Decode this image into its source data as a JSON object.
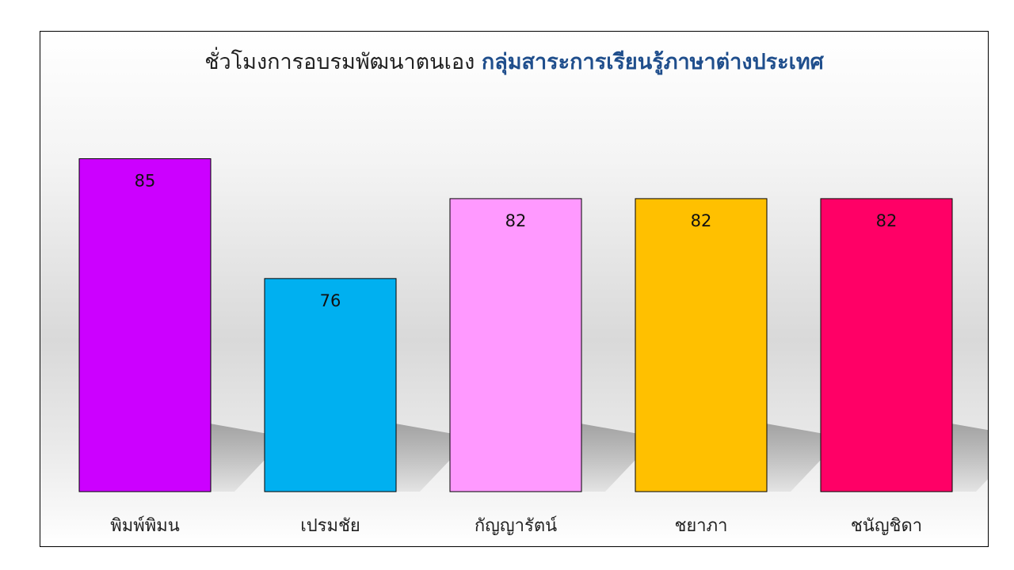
{
  "chart_data": {
    "type": "bar",
    "title_prefix": "ชั่วโมงการอบรมพัฒนาตนเอง",
    "title_highlight": "กลุ่มสาระการเรียนรู้ภาษาต่างประเทศ",
    "categories": [
      "พิมพ์พิมน",
      "เปรมชัย",
      "กัญญารัตน์",
      "ชยาภา",
      "ชนัญชิดา"
    ],
    "values": [
      85,
      76,
      82,
      82,
      82
    ],
    "colors": [
      "#cc00ff",
      "#00b0f0",
      "#ff99ff",
      "#ffc000",
      "#ff0066"
    ],
    "xlabel": "",
    "ylabel": "",
    "ylim": [
      60,
      88
    ],
    "grid": false,
    "legend": "none"
  }
}
